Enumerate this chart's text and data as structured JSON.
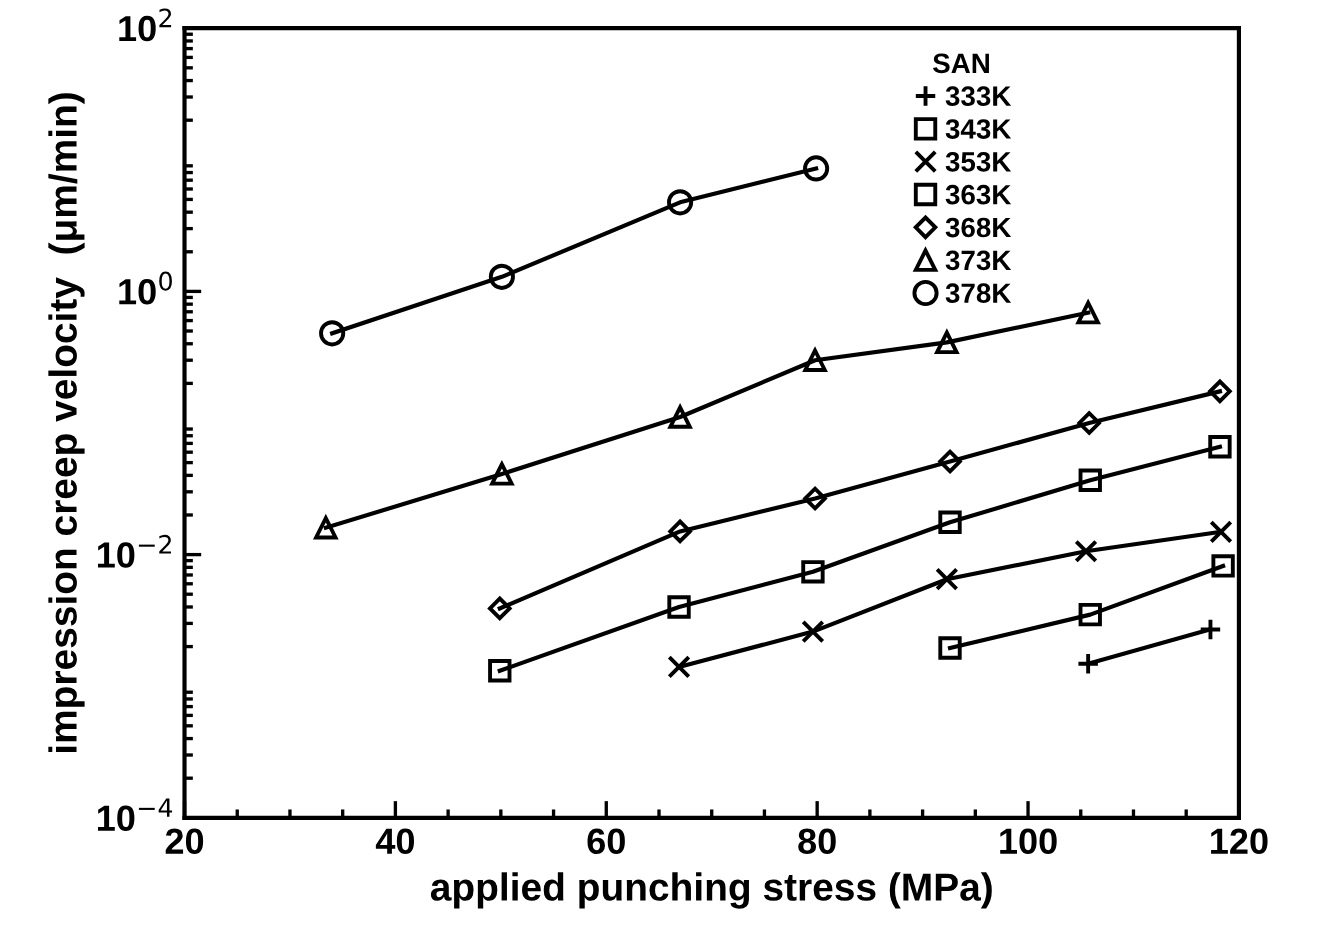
{
  "chart_data": {
    "type": "line",
    "xlabel": "applied punching stress (MPa)",
    "ylabel": "impression creep velocity  (μm/min)",
    "legend_title": "SAN",
    "legend": "top right",
    "log": "y",
    "grid": false,
    "xlim": [
      20,
      120
    ],
    "xticks": [
      20,
      40,
      60,
      80,
      100,
      120
    ],
    "ylim": [
      0.0001,
      100
    ],
    "yticks": [
      {
        "value": 0.0001,
        "label": "10$^{−4}$"
      },
      {
        "value": 0.01,
        "label": "10$^{−2}$"
      },
      {
        "value": 1,
        "label": "10$^{0}$"
      },
      {
        "value": 100,
        "label": "10$^{2}$"
      }
    ],
    "line_style": "solid",
    "series": [
      {
        "name": "333K",
        "color": "#000000",
        "marker": "plus",
        "x": [
          105.7,
          117.3
        ],
        "values": [
          0.00148,
          0.0027
        ]
      },
      {
        "name": "343K",
        "color": "#000000",
        "marker": "square",
        "x": [
          92.6,
          105.9,
          118.5
        ],
        "values": [
          0.00195,
          0.0035,
          0.0082
        ]
      },
      {
        "name": "353K",
        "color": "#000000",
        "marker": "cross",
        "x": [
          66.9,
          79.6,
          92.3,
          105.5,
          118.3
        ],
        "values": [
          0.0014,
          0.0026,
          0.0065,
          0.0106,
          0.0149
        ]
      },
      {
        "name": "363K",
        "color": "#000000",
        "marker": "square",
        "x": [
          49.9,
          66.9,
          79.6,
          92.6,
          105.9,
          118.2
        ],
        "values": [
          0.00131,
          0.004,
          0.0074,
          0.0176,
          0.0367,
          0.066
        ]
      },
      {
        "name": "368K",
        "color": "#000000",
        "marker": "diamond",
        "x": [
          49.9,
          67.0,
          79.8,
          92.6,
          105.8,
          118.2
        ],
        "values": [
          0.0039,
          0.015,
          0.0267,
          0.051,
          0.1,
          0.174
        ]
      },
      {
        "name": "373K",
        "color": "#000000",
        "marker": "triangle",
        "x": [
          33.4,
          50.1,
          67.0,
          79.8,
          92.3,
          105.7
        ],
        "values": [
          0.016,
          0.041,
          0.111,
          0.3,
          0.41,
          0.69
        ]
      },
      {
        "name": "378K",
        "color": "#000000",
        "marker": "circle",
        "x": [
          34.0,
          50.1,
          67.0,
          79.9
        ],
        "values": [
          0.48,
          1.29,
          4.75,
          8.6
        ]
      }
    ]
  }
}
